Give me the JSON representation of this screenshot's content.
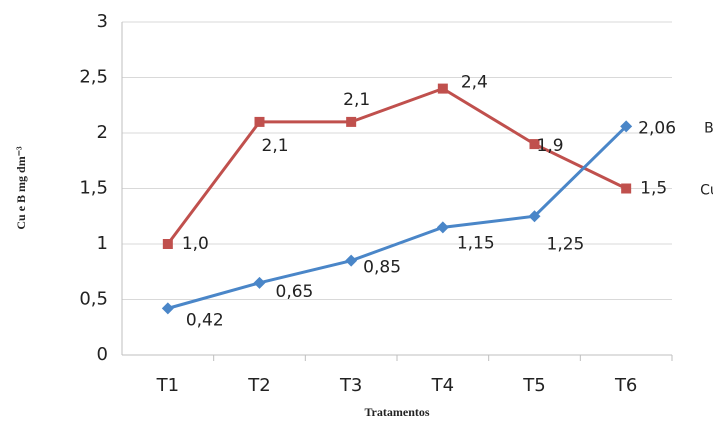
{
  "chart_data": {
    "type": "line",
    "y_label": "Cu e B mg dm⁻³",
    "x_label": "Tratamentos",
    "categories": [
      "T1",
      "T2",
      "T3",
      "T4",
      "T5",
      "T6"
    ],
    "series": [
      {
        "name": "Cu",
        "color": "#c0504d",
        "marker": "square",
        "values": [
          1.0,
          2.1,
          2.1,
          2.4,
          1.9,
          1.5
        ],
        "value_labels": [
          "1,0",
          "2,1",
          "2,1",
          "2,4",
          "1,9",
          "1,5"
        ]
      },
      {
        "name": "B",
        "color": "#4a86c8",
        "marker": "diamond",
        "values": [
          0.42,
          0.65,
          0.85,
          1.15,
          1.25,
          2.06
        ],
        "value_labels": [
          "0,42",
          "0,65",
          "0,85",
          "1,15",
          "1,25",
          "2,06"
        ]
      }
    ],
    "ylim": [
      0,
      3
    ],
    "yticks": [
      0,
      {
        "value": 0.5,
        "label": "0,5"
      },
      1,
      {
        "value": 1.5,
        "label": "1,5"
      },
      2,
      {
        "value": 2.5,
        "label": "2,5"
      },
      3
    ],
    "grid": true
  }
}
